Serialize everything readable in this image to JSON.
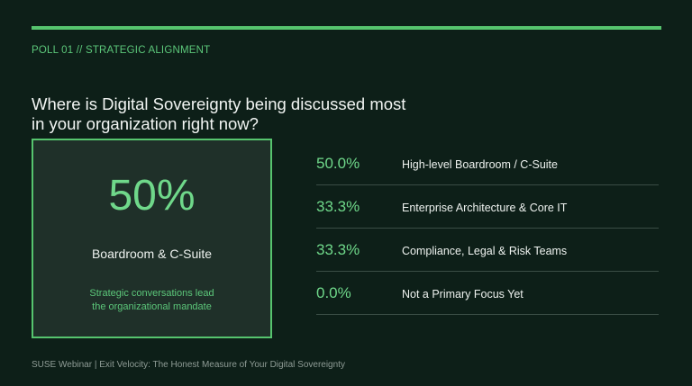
{
  "header": {
    "kicker": "POLL 01 // STRATEGIC ALIGNMENT",
    "question": "Where is Digital Sovereignty being discussed most in your organization right now?"
  },
  "highlight": {
    "value": "50%",
    "label": "Boardroom & C-Suite",
    "subtitle_line1": "Strategic conversations lead",
    "subtitle_line2": "the organizational mandate"
  },
  "results": [
    {
      "percent": "50.0%",
      "option": "High-level Boardroom / C-Suite"
    },
    {
      "percent": "33.3%",
      "option": "Enterprise Architecture & Core IT"
    },
    {
      "percent": "33.3%",
      "option": "Compliance, Legal & Risk Teams"
    },
    {
      "percent": "0.0%",
      "option": "Not a Primary Focus Yet"
    }
  ],
  "footer": {
    "text": "SUSE Webinar | Exit Velocity: The Honest Measure of Your Digital Sovereignty"
  },
  "colors": {
    "background": "#0d1f18",
    "accent": "#56c46e",
    "card": "#1f3029"
  }
}
